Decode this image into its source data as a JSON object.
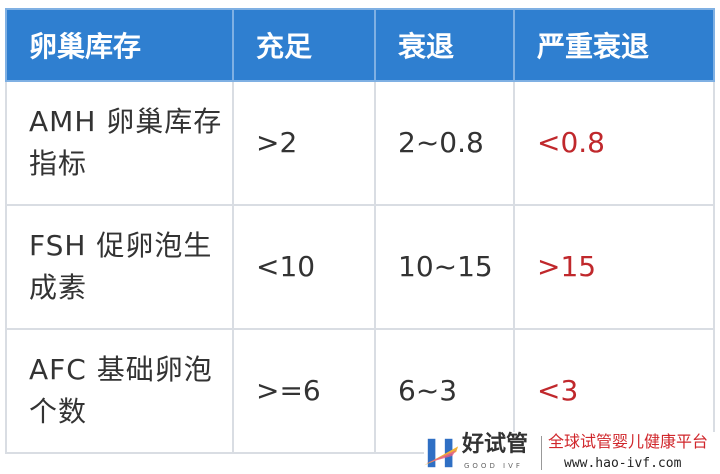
{
  "table": {
    "headers": [
      "卵巢库存",
      "充足",
      "衰退",
      "严重衰退"
    ],
    "rows": [
      [
        "AMH 卵巢库存指标",
        ">2",
        "2~0.8",
        "<0.8"
      ],
      [
        "FSH 促卵泡生成素",
        "<10",
        "10~15",
        ">15"
      ],
      [
        "AFC 基础卵泡个数",
        ">=6",
        "6~3",
        "<3"
      ]
    ]
  },
  "colors": {
    "header_bg": "#2f7fd0",
    "severe_text": "#c0282c"
  },
  "watermark": {
    "brand": "好试管",
    "brand_en": "GOOD IVF",
    "slogan": "全球试管婴儿健康平台",
    "url": "www.hao-ivf.com"
  }
}
